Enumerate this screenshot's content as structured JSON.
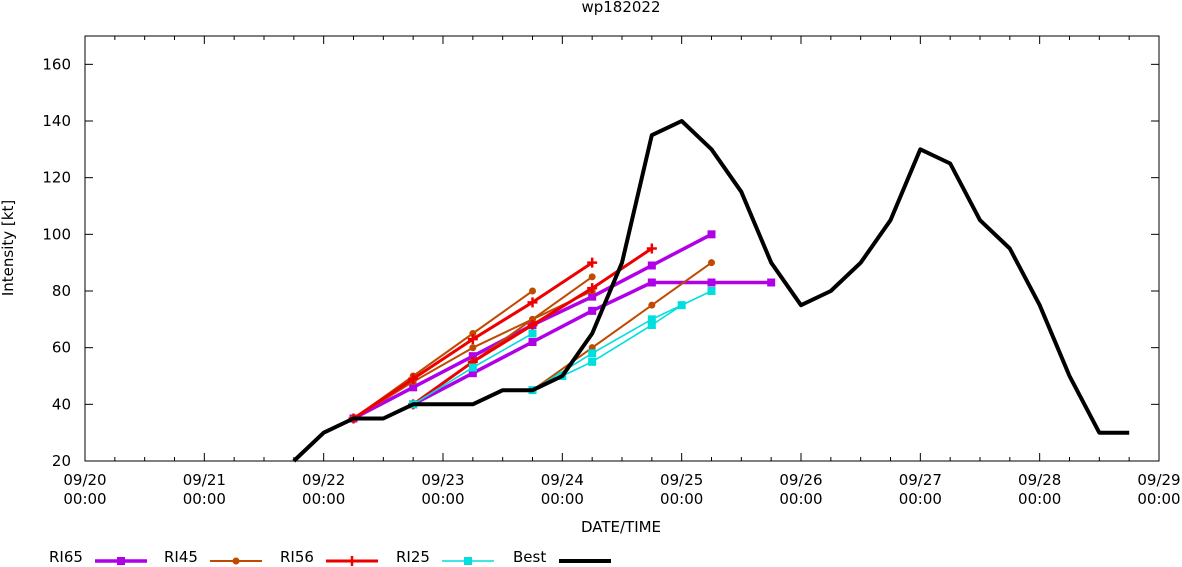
{
  "chart_data": {
    "type": "line",
    "title": "wp182022",
    "xlabel": "DATE/TIME",
    "ylabel": "Intensity [kt]",
    "grid": false,
    "legend_position": "bottom",
    "xlim": [
      "2022-09-20T00:00",
      "2022-09-29T00:00"
    ],
    "ylim": [
      20,
      170
    ],
    "yticks": [
      20,
      40,
      60,
      80,
      100,
      120,
      140,
      160
    ],
    "xticks": [
      {
        "date": "2022-09-20T00:00",
        "label1": "09/20",
        "label2": "00:00"
      },
      {
        "date": "2022-09-21T00:00",
        "label1": "09/21",
        "label2": "00:00"
      },
      {
        "date": "2022-09-22T00:00",
        "label1": "09/22",
        "label2": "00:00"
      },
      {
        "date": "2022-09-23T00:00",
        "label1": "09/23",
        "label2": "00:00"
      },
      {
        "date": "2022-09-24T00:00",
        "label1": "09/24",
        "label2": "00:00"
      },
      {
        "date": "2022-09-25T00:00",
        "label1": "09/25",
        "label2": "00:00"
      },
      {
        "date": "2022-09-26T00:00",
        "label1": "09/26",
        "label2": "00:00"
      },
      {
        "date": "2022-09-27T00:00",
        "label1": "09/27",
        "label2": "00:00"
      },
      {
        "date": "2022-09-28T00:00",
        "label1": "09/28",
        "label2": "00:00"
      },
      {
        "date": "2022-09-29T00:00",
        "label1": "09/29",
        "label2": "00:00"
      }
    ],
    "series": [
      {
        "name": "RI65",
        "color": "#b000e8",
        "marker": "square",
        "lines": [
          [
            [
              "2022-09-22T06:00",
              35
            ],
            [
              "2022-09-22T18:00",
              46
            ],
            [
              "2022-09-23T06:00",
              57
            ],
            [
              "2022-09-23T18:00",
              68
            ],
            [
              "2022-09-24T06:00",
              78
            ],
            [
              "2022-09-24T18:00",
              89
            ],
            [
              "2022-09-25T06:00",
              100
            ]
          ],
          [
            [
              "2022-09-22T18:00",
              40
            ],
            [
              "2022-09-23T06:00",
              51
            ],
            [
              "2022-09-23T18:00",
              62
            ],
            [
              "2022-09-24T06:00",
              73
            ],
            [
              "2022-09-24T18:00",
              83
            ],
            [
              "2022-09-25T06:00",
              83
            ],
            [
              "2022-09-25T18:00",
              83
            ]
          ]
        ]
      },
      {
        "name": "RI45",
        "color": "#c04a00",
        "marker": "circle",
        "lines": [
          [
            [
              "2022-09-22T06:00",
              35
            ],
            [
              "2022-09-22T18:00",
              50
            ],
            [
              "2022-09-23T06:00",
              65
            ],
            [
              "2022-09-23T18:00",
              80
            ]
          ],
          [
            [
              "2022-09-22T06:00",
              35
            ],
            [
              "2022-09-22T18:00",
              48
            ],
            [
              "2022-09-23T06:00",
              60
            ],
            [
              "2022-09-23T18:00",
              70
            ],
            [
              "2022-09-24T06:00",
              85
            ]
          ],
          [
            [
              "2022-09-22T18:00",
              40
            ],
            [
              "2022-09-23T06:00",
              55
            ],
            [
              "2022-09-23T18:00",
              70
            ],
            [
              "2022-09-24T06:00",
              80
            ]
          ],
          [
            [
              "2022-09-23T18:00",
              45
            ],
            [
              "2022-09-24T06:00",
              60
            ],
            [
              "2022-09-24T18:00",
              75
            ],
            [
              "2022-09-25T06:00",
              90
            ]
          ]
        ]
      },
      {
        "name": "RI56",
        "color": "#ee0000",
        "marker": "plus",
        "lines": [
          [
            [
              "2022-09-22T06:00",
              35
            ],
            [
              "2022-09-22T18:00",
              49
            ],
            [
              "2022-09-23T06:00",
              63
            ],
            [
              "2022-09-23T18:00",
              76
            ],
            [
              "2022-09-24T06:00",
              90
            ]
          ],
          [
            [
              "2022-09-22T18:00",
              40
            ],
            [
              "2022-09-23T06:00",
              55
            ],
            [
              "2022-09-23T18:00",
              68
            ],
            [
              "2022-09-24T06:00",
              81
            ],
            [
              "2022-09-24T18:00",
              95
            ]
          ]
        ]
      },
      {
        "name": "RI25",
        "color": "#00dede",
        "marker": "square",
        "lines": [
          [
            [
              "2022-09-22T18:00",
              40
            ],
            [
              "2022-09-23T06:00",
              53
            ],
            [
              "2022-09-23T18:00",
              65
            ]
          ],
          [
            [
              "2022-09-23T18:00",
              45
            ],
            [
              "2022-09-24T06:00",
              58
            ],
            [
              "2022-09-24T18:00",
              70
            ],
            [
              "2022-09-25T06:00",
              80
            ]
          ],
          [
            [
              "2022-09-24T00:00",
              50
            ],
            [
              "2022-09-24T06:00",
              55
            ],
            [
              "2022-09-24T18:00",
              68
            ],
            [
              "2022-09-25T00:00",
              75
            ]
          ]
        ]
      },
      {
        "name": "Best",
        "color": "#000000",
        "marker": "none",
        "lines": [
          [
            [
              "2022-09-21T18:00",
              20
            ],
            [
              "2022-09-22T00:00",
              30
            ],
            [
              "2022-09-22T06:00",
              35
            ],
            [
              "2022-09-22T12:00",
              35
            ],
            [
              "2022-09-22T18:00",
              40
            ],
            [
              "2022-09-23T00:00",
              40
            ],
            [
              "2022-09-23T06:00",
              40
            ],
            [
              "2022-09-23T12:00",
              45
            ],
            [
              "2022-09-23T18:00",
              45
            ],
            [
              "2022-09-24T00:00",
              50
            ],
            [
              "2022-09-24T06:00",
              65
            ],
            [
              "2022-09-24T12:00",
              90
            ],
            [
              "2022-09-24T18:00",
              135
            ],
            [
              "2022-09-25T00:00",
              140
            ],
            [
              "2022-09-25T06:00",
              130
            ],
            [
              "2022-09-25T12:00",
              115
            ],
            [
              "2022-09-25T18:00",
              90
            ],
            [
              "2022-09-26T00:00",
              75
            ],
            [
              "2022-09-26T06:00",
              80
            ],
            [
              "2022-09-26T12:00",
              90
            ],
            [
              "2022-09-26T18:00",
              105
            ],
            [
              "2022-09-27T00:00",
              130
            ],
            [
              "2022-09-27T06:00",
              125
            ],
            [
              "2022-09-27T12:00",
              105
            ],
            [
              "2022-09-27T18:00",
              95
            ],
            [
              "2022-09-28T00:00",
              75
            ],
            [
              "2022-09-28T06:00",
              50
            ],
            [
              "2022-09-28T12:00",
              30
            ],
            [
              "2022-09-28T18:00",
              30
            ]
          ]
        ]
      }
    ]
  }
}
